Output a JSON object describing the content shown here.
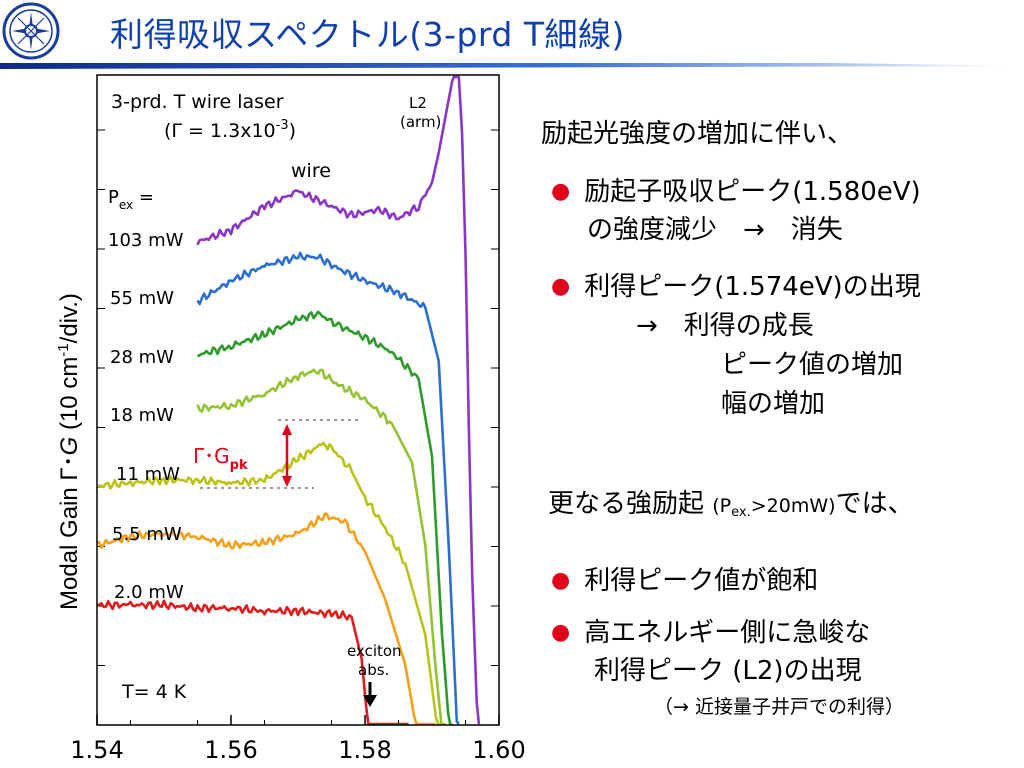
{
  "title": "利得吸収スペクトル(3-prd T細線)",
  "colors": {
    "title_blue": "#1040b0",
    "bullet_red": "#e0001a"
  },
  "plot": {
    "device_label": "3-prd. T wire laser",
    "gamma_label": "(Γ = 1.3x10",
    "gamma_exp": "-3",
    "gamma_close": ")",
    "wire_label": "wire",
    "l2_label": "L2",
    "arm_label": "(arm)",
    "pex_label": "P",
    "pex_sub": "ex",
    "pex_eq": " =",
    "gpk_label": "Γ･G",
    "gpk_sub": "pk",
    "exciton_label": "exciton",
    "abs_label": "abs.",
    "temp_label": "T= 4 K",
    "ylabel_main": "Modal Gain  Γ･",
    "ylabel_g": "G",
    "ylabel_units": "  (10 cm",
    "ylabel_exp": "-1",
    "ylabel_div": "/div.)"
  },
  "chart_data": {
    "type": "line",
    "title": "",
    "xlabel": "",
    "ylabel": "Modal Gain Γ･G (10 cm-1/div.)",
    "xlim": [
      1.54,
      1.6
    ],
    "x_ticks": [
      "1.54",
      "1.56",
      "1.58",
      "1.60"
    ],
    "y_units": "arbitrary (traces offset vertically, 10 cm-1/div.)",
    "series": [
      {
        "name": "2.0 mW",
        "color": "#e01b1b",
        "x": [
          1.54,
          1.545,
          1.55,
          1.555,
          1.56,
          1.565,
          1.57,
          1.575,
          1.578,
          1.5795,
          1.5805,
          1.584,
          1.5865
        ],
        "y": [
          1.5,
          1.5,
          1.5,
          1.45,
          1.45,
          1.4,
          1.4,
          1.35,
          1.3,
          0.6,
          -0.6,
          -0.6,
          -1.2
        ]
      },
      {
        "name": "5.5 mW",
        "color": "#f5a01a",
        "x": [
          1.54,
          1.545,
          1.55,
          1.555,
          1.56,
          1.565,
          1.57,
          1.574,
          1.577,
          1.58,
          1.583,
          1.586,
          1.588,
          1.5905
        ],
        "y": [
          2.5,
          2.65,
          2.7,
          2.65,
          2.5,
          2.55,
          2.7,
          3.0,
          2.9,
          2.4,
          1.6,
          0.5,
          -0.8,
          -1.2
        ]
      },
      {
        "name": "11 mW",
        "color": "#bcc21a",
        "x": [
          1.54,
          1.545,
          1.55,
          1.555,
          1.56,
          1.565,
          1.57,
          1.5735,
          1.575,
          1.578,
          1.58,
          1.583,
          1.586,
          1.589,
          1.5915
        ],
        "y": [
          3.5,
          3.55,
          3.6,
          3.6,
          3.55,
          3.6,
          3.95,
          4.2,
          4.15,
          3.75,
          3.3,
          2.8,
          2.2,
          1.0,
          -1.2
        ]
      },
      {
        "name": "18 mW",
        "color": "#93c332",
        "x": [
          1.555,
          1.56,
          1.565,
          1.57,
          1.573,
          1.576,
          1.58,
          1.584,
          1.587,
          1.589,
          1.5905,
          1.592
        ],
        "y": [
          4.8,
          4.85,
          5.05,
          5.35,
          5.45,
          5.2,
          4.95,
          4.55,
          3.9,
          2.5,
          0.5,
          -1.2
        ]
      },
      {
        "name": "28 mW",
        "color": "#2f9a2c",
        "x": [
          1.555,
          1.56,
          1.565,
          1.57,
          1.573,
          1.576,
          1.58,
          1.584,
          1.588,
          1.59,
          1.5915,
          1.593
        ],
        "y": [
          5.7,
          5.85,
          6.05,
          6.3,
          6.4,
          6.2,
          6.0,
          5.75,
          5.3,
          4.0,
          1.0,
          -1.2
        ]
      },
      {
        "name": "55 mW",
        "color": "#2b6fd1",
        "x": [
          1.555,
          1.56,
          1.565,
          1.57,
          1.573,
          1.576,
          1.58,
          1.585,
          1.589,
          1.591,
          1.5925,
          1.594
        ],
        "y": [
          6.6,
          6.95,
          7.2,
          7.35,
          7.35,
          7.15,
          6.95,
          6.75,
          6.5,
          5.6,
          2.5,
          -1.2
        ]
      },
      {
        "name": "103 mW",
        "color": "#8a35c8",
        "x": [
          1.555,
          1.56,
          1.565,
          1.57,
          1.574,
          1.578,
          1.582,
          1.585,
          1.588,
          1.59
        ],
        "y": [
          7.6,
          7.8,
          8.2,
          8.45,
          8.25,
          8.05,
          8.15,
          8.0,
          8.2,
          8.6
        ]
      },
      {
        "name": "L2 (arm)",
        "color": "#8a35c8",
        "x": [
          1.59,
          1.591,
          1.592,
          1.593,
          1.5935,
          1.594,
          1.5945,
          1.595,
          1.5955,
          1.596,
          1.597
        ],
        "y": [
          8.6,
          9.1,
          9.7,
          10.3,
          10.5,
          10.4,
          9.4,
          7.4,
          4.5,
          2.0,
          -1.2
        ]
      }
    ]
  },
  "text": {
    "intro": "励起光強度の増加に伴い、",
    "b1_line1": "励起子吸収ピーク(1.580eV)",
    "b1_line2": "の強度減少　→　消失",
    "b2_line1": "利得ピーク(1.574eV)の出現",
    "b2_line2": "→　利得の成長",
    "b2_line3": "ピーク値の増加",
    "b2_line4": "幅の増加",
    "more_prefix": "更なる強励起 ",
    "more_paren": "(P",
    "more_sub": "ex.",
    "more_rest": ">20mW)",
    "more_suffix": "では、",
    "b3": "利得ピーク値が飽和",
    "b4_line1": "高エネルギー側に急峻な",
    "b4_line2": "利得ピーク (L2)の出現",
    "note": "（→ 近接量子井戸での利得）"
  }
}
